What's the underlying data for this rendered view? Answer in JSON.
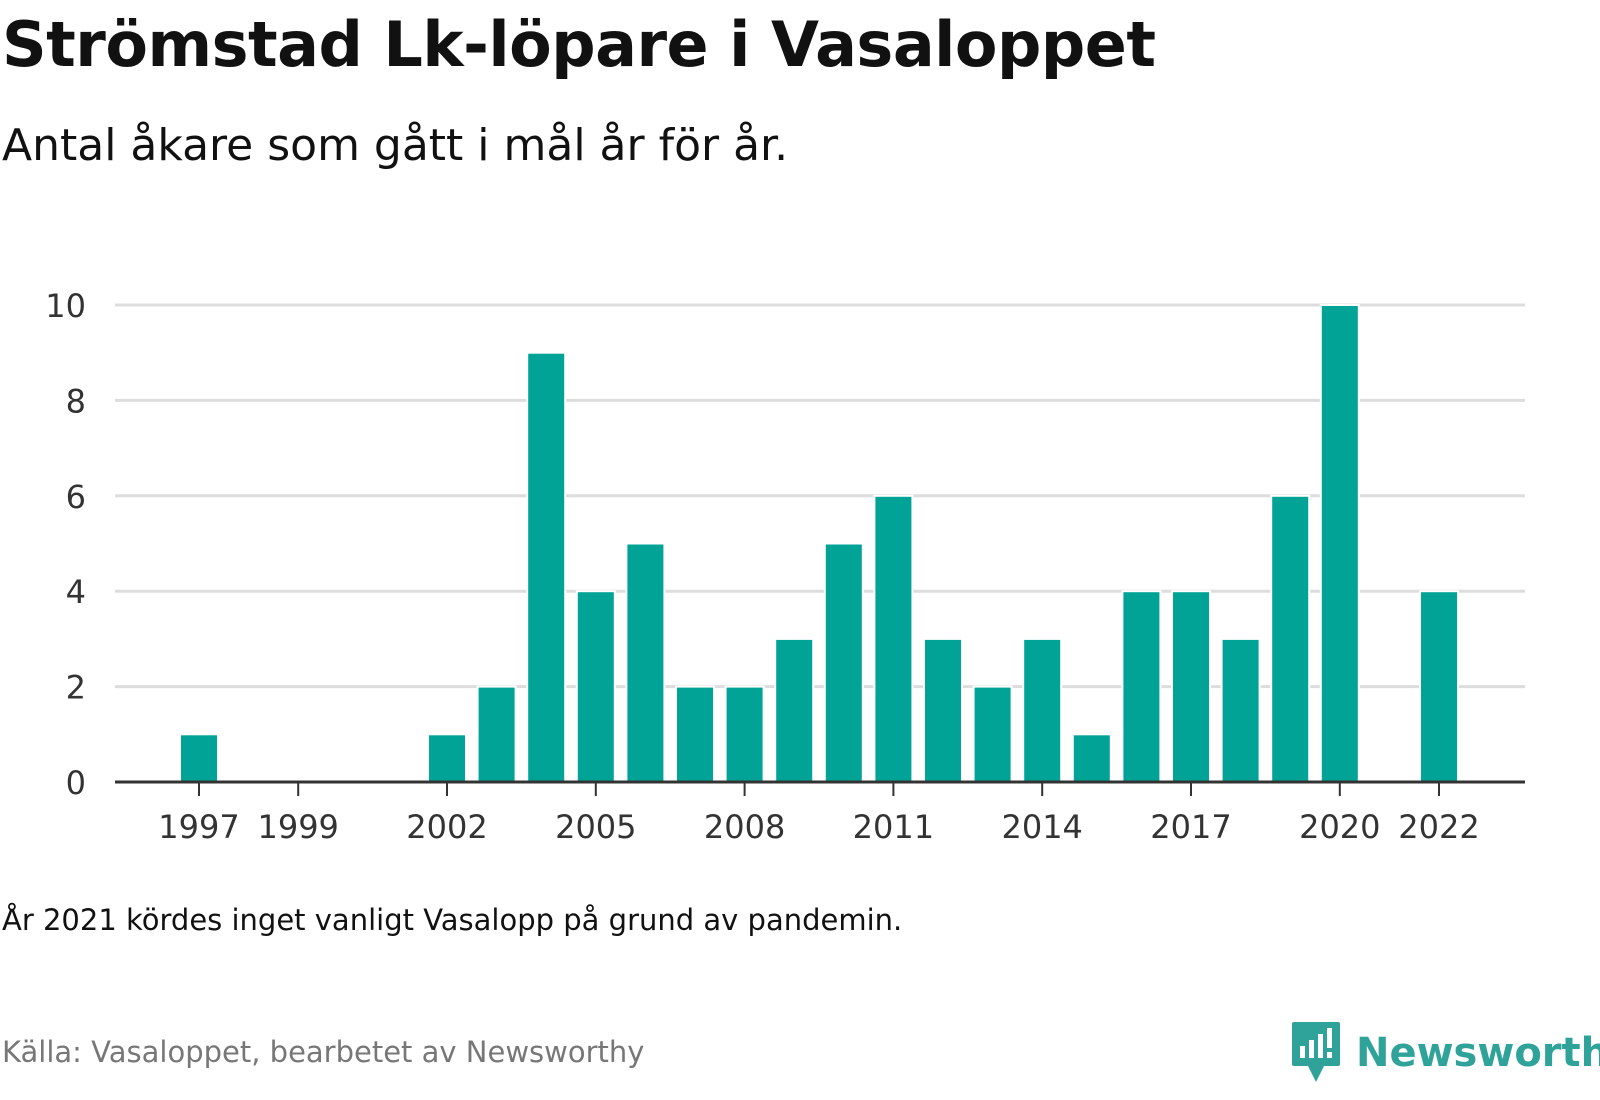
{
  "title": "Strömstad Lk-löpare i Vasaloppet",
  "subtitle": "Antal åkare som gått i mål år för år.",
  "note": "År 2021 kördes inget vanligt Vasalopp på grund av pandemin.",
  "source": "Källa: Vasaloppet, bearbetet av Newsworthy",
  "brand": "Newsworthy",
  "colors": {
    "bar": "#00a396",
    "grid": "#dddddd",
    "axis": "#333333",
    "brand": "#2fa39a"
  },
  "chart_data": {
    "type": "bar",
    "x": [
      1997,
      1998,
      1999,
      2000,
      2001,
      2002,
      2003,
      2004,
      2005,
      2006,
      2007,
      2008,
      2009,
      2010,
      2011,
      2012,
      2013,
      2014,
      2015,
      2016,
      2017,
      2018,
      2019,
      2020,
      2021,
      2022
    ],
    "values": [
      1,
      0,
      0,
      0,
      0,
      1,
      2,
      9,
      4,
      5,
      2,
      2,
      3,
      5,
      6,
      3,
      2,
      3,
      1,
      4,
      4,
      3,
      6,
      10,
      0,
      4
    ],
    "x_tick_labels": [
      "1997",
      "1999",
      "2002",
      "2005",
      "2008",
      "2011",
      "2014",
      "2017",
      "2020",
      "2022"
    ],
    "y_ticks": [
      0,
      2,
      4,
      6,
      8,
      10
    ],
    "ylim": [
      0,
      10
    ],
    "grid": true,
    "legend": "none"
  }
}
